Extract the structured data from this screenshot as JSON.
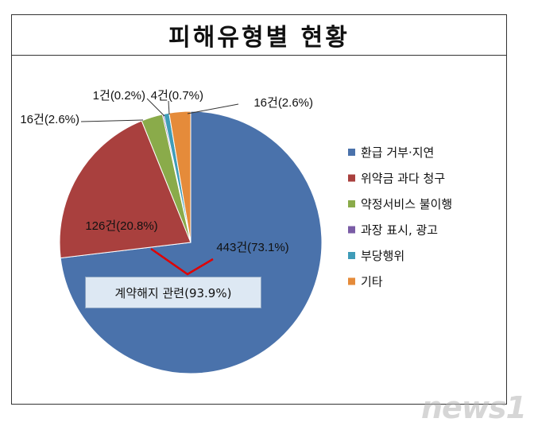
{
  "title": "피해유형별 현황",
  "callout": "계약해지 관련(93.9%)",
  "watermark": "news1",
  "chart_data": {
    "type": "pie",
    "title": "피해유형별 현황",
    "legend_position": "right",
    "slices": [
      {
        "name": "환급 거부·지연",
        "count": 443,
        "percent": 73.1,
        "label": "443건(73.1%)",
        "color": "#4a72ab"
      },
      {
        "name": "위약금 과다 청구",
        "count": 126,
        "percent": 20.8,
        "label": "126건(20.8%)",
        "color": "#a9403e"
      },
      {
        "name": "약정서비스 불이행",
        "count": 16,
        "percent": 2.6,
        "label": "16건(2.6%)",
        "color": "#8aab4a"
      },
      {
        "name": "과장 표시, 광고",
        "count": 1,
        "percent": 0.2,
        "label": "1건(0.2%)",
        "color": "#7a5ca6"
      },
      {
        "name": "부당행위",
        "count": 4,
        "percent": 0.7,
        "label": "4건(0.7%)",
        "color": "#3f9cb8"
      },
      {
        "name": "기타",
        "count": 16,
        "percent": 2.6,
        "label": "16건(2.6%)",
        "color": "#e58b3a"
      }
    ]
  }
}
